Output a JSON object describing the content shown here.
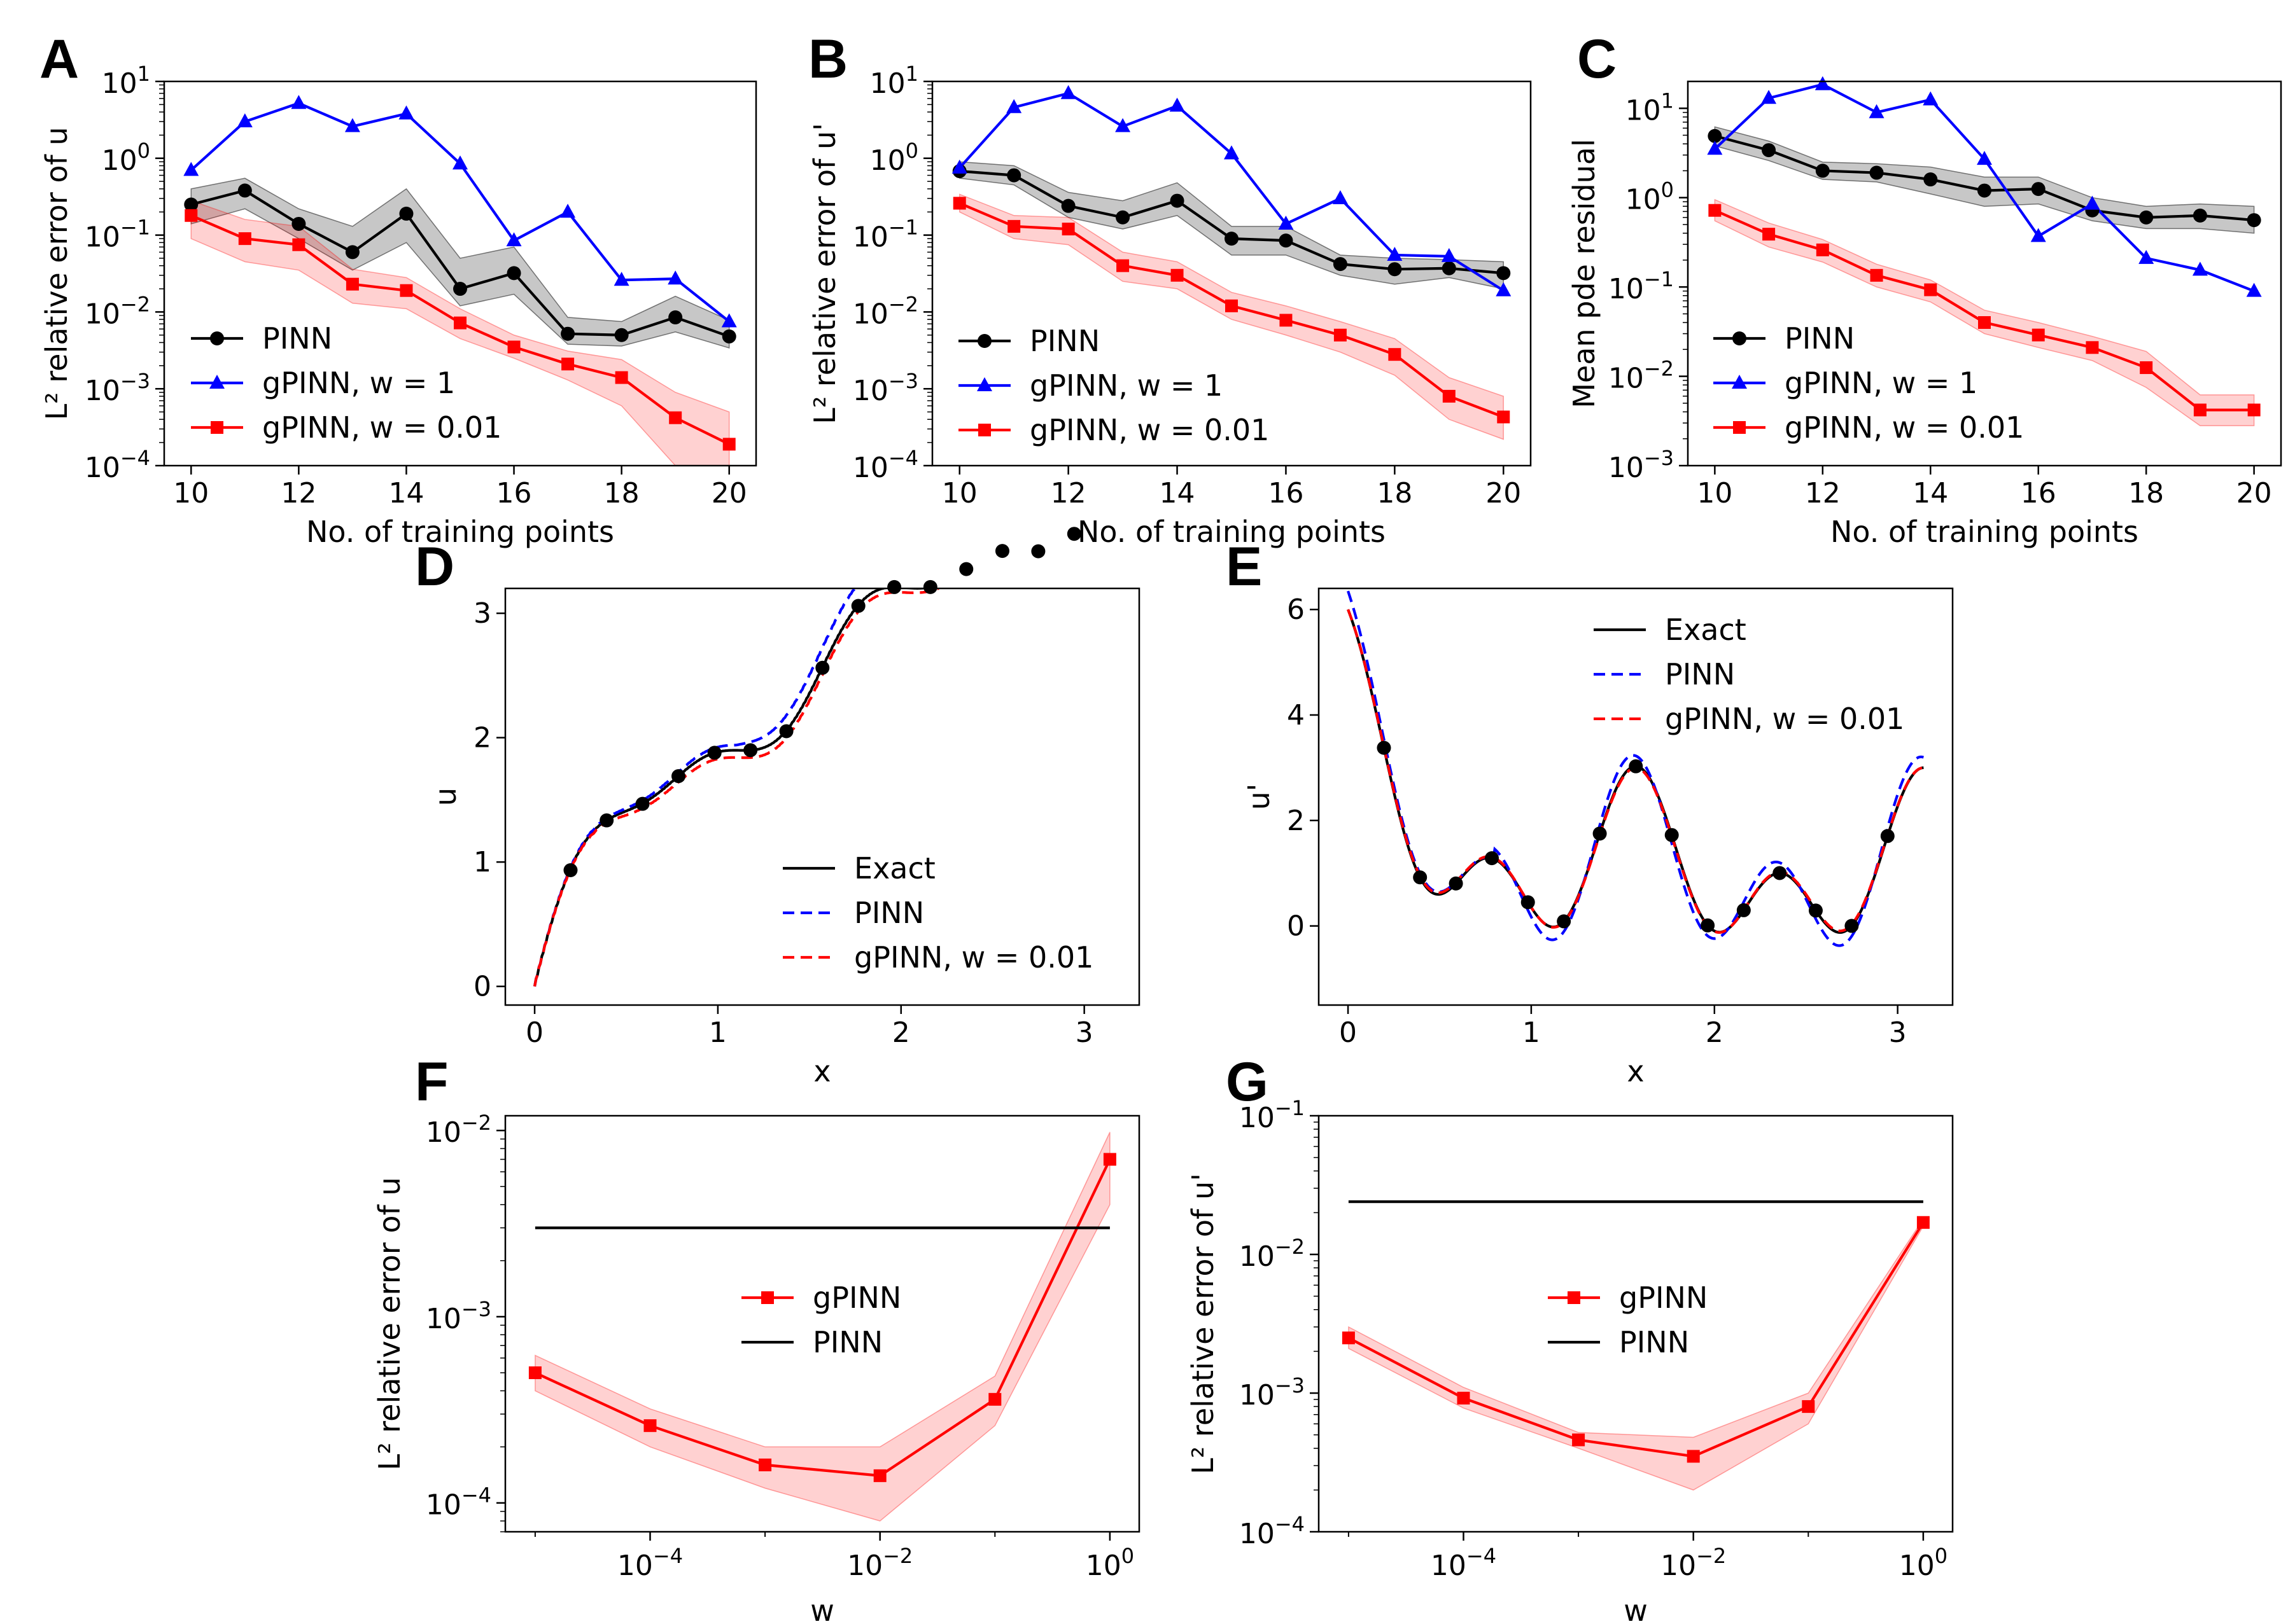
{
  "chart_data": [
    {
      "id": "A",
      "panel_letter": "A",
      "type": "line",
      "scale": "linlog",
      "xlabel": "No. of training points",
      "ylabel": "L² relative error of u",
      "xlim": [
        9.5,
        20.5
      ],
      "ylim": [
        0.0001,
        10
      ],
      "xticks": [
        10,
        12,
        14,
        16,
        18,
        20
      ],
      "yticks": [
        {
          "v": 0.0001,
          "b": "10",
          "e": "−4"
        },
        {
          "v": 0.001,
          "b": "10",
          "e": "−3"
        },
        {
          "v": 0.01,
          "b": "10",
          "e": "−2"
        },
        {
          "v": 0.1,
          "b": "10",
          "e": "−1"
        },
        {
          "v": 1,
          "b": "10",
          "e": "0"
        },
        {
          "v": 10,
          "b": "10",
          "e": "1"
        }
      ],
      "legend": "lower-left",
      "grid": false,
      "series": [
        {
          "name": "PINN",
          "color": "#000000",
          "marker": "circle",
          "x": [
            10,
            11,
            12,
            13,
            14,
            15,
            16,
            17,
            18,
            19,
            20
          ],
          "y": [
            0.25,
            0.38,
            0.14,
            0.06,
            0.19,
            0.02,
            0.032,
            0.0052,
            0.005,
            0.0085,
            0.0048
          ],
          "band_low": [
            0.14,
            0.22,
            0.09,
            0.035,
            0.08,
            0.012,
            0.017,
            0.0038,
            0.0036,
            0.0055,
            0.0034
          ],
          "band_high": [
            0.4,
            0.55,
            0.22,
            0.13,
            0.4,
            0.05,
            0.07,
            0.0085,
            0.0075,
            0.016,
            0.0078
          ]
        },
        {
          "name": "gPINN, w = 1",
          "color": "#0000ff",
          "marker": "triangle",
          "x": [
            10,
            11,
            12,
            13,
            14,
            15,
            16,
            17,
            18,
            19,
            20
          ],
          "y": [
            0.7,
            3.0,
            5.2,
            2.6,
            3.8,
            0.85,
            0.085,
            0.2,
            0.026,
            0.027,
            0.0075
          ]
        },
        {
          "name": "gPINN, w = 0.01",
          "color": "#ff0000",
          "marker": "square",
          "x": [
            10,
            11,
            12,
            13,
            14,
            15,
            16,
            17,
            18,
            19,
            20
          ],
          "y": [
            0.18,
            0.09,
            0.075,
            0.023,
            0.019,
            0.0072,
            0.0035,
            0.0021,
            0.0014,
            0.00042,
            0.00019
          ],
          "band_low": [
            0.09,
            0.045,
            0.035,
            0.013,
            0.011,
            0.0045,
            0.0025,
            0.0013,
            0.0006,
            0.0001,
            0.0001
          ],
          "band_high": [
            0.28,
            0.16,
            0.13,
            0.036,
            0.028,
            0.011,
            0.005,
            0.0031,
            0.0024,
            0.0009,
            0.0005
          ]
        }
      ]
    },
    {
      "id": "B",
      "panel_letter": "B",
      "type": "line",
      "scale": "linlog",
      "xlabel": "No. of training points",
      "ylabel": "L² relative error of u'",
      "xlim": [
        9.5,
        20.5
      ],
      "ylim": [
        0.0001,
        10
      ],
      "xticks": [
        10,
        12,
        14,
        16,
        18,
        20
      ],
      "yticks": [
        {
          "v": 0.0001,
          "b": "10",
          "e": "−4"
        },
        {
          "v": 0.001,
          "b": "10",
          "e": "−3"
        },
        {
          "v": 0.01,
          "b": "10",
          "e": "−2"
        },
        {
          "v": 0.1,
          "b": "10",
          "e": "−1"
        },
        {
          "v": 1,
          "b": "10",
          "e": "0"
        },
        {
          "v": 10,
          "b": "10",
          "e": "1"
        }
      ],
      "legend": "lower-left",
      "grid": false,
      "series": [
        {
          "name": "PINN",
          "color": "#000000",
          "marker": "circle",
          "x": [
            10,
            11,
            12,
            13,
            14,
            15,
            16,
            17,
            18,
            19,
            20
          ],
          "y": [
            0.68,
            0.6,
            0.24,
            0.17,
            0.28,
            0.09,
            0.085,
            0.042,
            0.036,
            0.037,
            0.032
          ],
          "band_low": [
            0.55,
            0.45,
            0.17,
            0.12,
            0.18,
            0.055,
            0.055,
            0.03,
            0.023,
            0.028,
            0.02
          ],
          "band_high": [
            0.9,
            0.8,
            0.36,
            0.28,
            0.48,
            0.13,
            0.13,
            0.055,
            0.05,
            0.048,
            0.045
          ]
        },
        {
          "name": "gPINN, w = 1",
          "color": "#0000ff",
          "marker": "triangle",
          "x": [
            10,
            11,
            12,
            13,
            14,
            15,
            16,
            17,
            18,
            19,
            20
          ],
          "y": [
            0.75,
            4.6,
            7.0,
            2.6,
            4.8,
            1.15,
            0.14,
            0.3,
            0.055,
            0.053,
            0.019
          ]
        },
        {
          "name": "gPINN, w = 0.01",
          "color": "#ff0000",
          "marker": "square",
          "x": [
            10,
            11,
            12,
            13,
            14,
            15,
            16,
            17,
            18,
            19,
            20
          ],
          "y": [
            0.26,
            0.13,
            0.12,
            0.04,
            0.03,
            0.012,
            0.0078,
            0.005,
            0.0028,
            0.0008,
            0.00043
          ],
          "band_low": [
            0.2,
            0.09,
            0.075,
            0.025,
            0.02,
            0.008,
            0.005,
            0.003,
            0.0015,
            0.0004,
            0.00022
          ],
          "band_high": [
            0.34,
            0.18,
            0.17,
            0.06,
            0.045,
            0.018,
            0.012,
            0.0075,
            0.0045,
            0.0014,
            0.0008
          ]
        }
      ]
    },
    {
      "id": "C",
      "panel_letter": "C",
      "type": "line",
      "scale": "linlog",
      "xlabel": "No. of training points",
      "ylabel": "Mean pde residual",
      "xlim": [
        9.5,
        20.5
      ],
      "ylim": [
        0.001,
        20
      ],
      "xticks": [
        10,
        12,
        14,
        16,
        18,
        20
      ],
      "yticks": [
        {
          "v": 0.001,
          "b": "10",
          "e": "−3"
        },
        {
          "v": 0.01,
          "b": "10",
          "e": "−2"
        },
        {
          "v": 0.1,
          "b": "10",
          "e": "−1"
        },
        {
          "v": 1,
          "b": "10",
          "e": "0"
        },
        {
          "v": 10,
          "b": "10",
          "e": "1"
        }
      ],
      "legend": "lower-left",
      "grid": false,
      "series": [
        {
          "name": "PINN",
          "color": "#000000",
          "marker": "circle",
          "x": [
            10,
            11,
            12,
            13,
            14,
            15,
            16,
            17,
            18,
            19,
            20
          ],
          "y": [
            4.9,
            3.4,
            2.0,
            1.9,
            1.6,
            1.2,
            1.25,
            0.72,
            0.6,
            0.63,
            0.56
          ],
          "band_low": [
            3.8,
            2.6,
            1.6,
            1.5,
            1.1,
            0.8,
            0.85,
            0.55,
            0.45,
            0.45,
            0.4
          ],
          "band_high": [
            6.2,
            4.3,
            2.5,
            2.4,
            2.2,
            1.7,
            1.7,
            1.0,
            0.8,
            0.85,
            0.8
          ]
        },
        {
          "name": "gPINN, w = 1",
          "color": "#0000ff",
          "marker": "triangle",
          "x": [
            10,
            11,
            12,
            13,
            14,
            15,
            16,
            17,
            18,
            19,
            20
          ],
          "y": [
            3.5,
            13.0,
            18.5,
            9.0,
            12.5,
            2.7,
            0.37,
            0.85,
            0.21,
            0.155,
            0.09
          ]
        },
        {
          "name": "gPINN, w = 0.01",
          "color": "#ff0000",
          "marker": "square",
          "x": [
            10,
            11,
            12,
            13,
            14,
            15,
            16,
            17,
            18,
            19,
            20
          ],
          "y": [
            0.72,
            0.39,
            0.26,
            0.135,
            0.093,
            0.04,
            0.029,
            0.021,
            0.0125,
            0.0042,
            0.0042
          ],
          "band_low": [
            0.55,
            0.28,
            0.19,
            0.1,
            0.068,
            0.03,
            0.021,
            0.015,
            0.0075,
            0.0028,
            0.0028
          ],
          "band_high": [
            0.95,
            0.52,
            0.34,
            0.18,
            0.12,
            0.055,
            0.04,
            0.028,
            0.019,
            0.0062,
            0.0062
          ]
        }
      ]
    },
    {
      "id": "D",
      "panel_letter": "D",
      "type": "line",
      "scale": "linlin",
      "xlabel": "x",
      "ylabel": "u",
      "xlim": [
        -0.16,
        3.3
      ],
      "ylim": [
        -0.15,
        3.2
      ],
      "xticks": [
        0,
        1,
        2,
        3
      ],
      "yticks_lin": [
        0,
        1,
        2,
        3
      ],
      "legend": "lower-right",
      "grid": false,
      "series": [
        {
          "name": "Exact",
          "color": "#000000",
          "dash": "",
          "func": "u_exact"
        },
        {
          "name": "PINN",
          "color": "#0000ff",
          "dash": "18,10",
          "func": "u_pinn"
        },
        {
          "name": "gPINN, w = 0.01",
          "color": "#ff0000",
          "dash": "18,10",
          "func": "u_gpinn"
        }
      ],
      "training_points": {
        "x": [
          0.196,
          0.393,
          0.589,
          0.785,
          0.982,
          1.178,
          1.374,
          1.571,
          1.767,
          1.963,
          2.16,
          2.356,
          2.553,
          2.749,
          2.945
        ]
      }
    },
    {
      "id": "E",
      "panel_letter": "E",
      "type": "line",
      "scale": "linlin",
      "xlabel": "x",
      "ylabel": "u'",
      "xlim": [
        -0.16,
        3.3
      ],
      "ylim": [
        -1.5,
        6.4
      ],
      "xticks": [
        0,
        1,
        2,
        3
      ],
      "yticks_lin": [
        0,
        2,
        4,
        6
      ],
      "legend": "upper-right",
      "grid": false,
      "series": [
        {
          "name": "Exact",
          "color": "#000000",
          "dash": "",
          "func": "du_exact"
        },
        {
          "name": "PINN",
          "color": "#0000ff",
          "dash": "18,10",
          "func": "du_pinn"
        },
        {
          "name": "gPINN, w = 0.01",
          "color": "#ff0000",
          "dash": "18,10",
          "func": "du_gpinn"
        }
      ],
      "training_points": {
        "x": [
          0.196,
          0.393,
          0.589,
          0.785,
          0.982,
          1.178,
          1.374,
          1.571,
          1.767,
          1.963,
          2.16,
          2.356,
          2.553,
          2.749,
          2.945
        ]
      }
    },
    {
      "id": "F",
      "panel_letter": "F",
      "type": "line",
      "scale": "loglog",
      "xlabel": "w",
      "ylabel": "L² relative error of u",
      "xlim": [
        5.5e-06,
        1.8
      ],
      "ylim": [
        7e-05,
        0.012
      ],
      "xticks": [
        {
          "v": 0.0001,
          "b": "10",
          "e": "−4"
        },
        {
          "v": 0.01,
          "b": "10",
          "e": "−2"
        },
        {
          "v": 1,
          "b": "10",
          "e": "0"
        }
      ],
      "yticks": [
        {
          "v": 0.0001,
          "b": "10",
          "e": "−4"
        },
        {
          "v": 0.001,
          "b": "10",
          "e": "−3"
        },
        {
          "v": 0.01,
          "b": "10",
          "e": "−2"
        }
      ],
      "legend": "center",
      "grid": false,
      "series": [
        {
          "name": "gPINN",
          "color": "#ff0000",
          "marker": "square",
          "x": [
            1e-05,
            0.0001,
            0.001,
            0.01,
            0.1,
            1
          ],
          "y": [
            0.0005,
            0.00026,
            0.00016,
            0.00014,
            0.00036,
            0.007
          ],
          "band_low": [
            0.0004,
            0.0002,
            0.00012,
            8e-05,
            0.00026,
            0.004
          ],
          "band_high": [
            0.00062,
            0.00032,
            0.0002,
            0.0002,
            0.00048,
            0.0098
          ]
        },
        {
          "name": "PINN",
          "color": "#000000",
          "x": [
            1e-05,
            1
          ],
          "y": [
            0.003,
            0.003
          ]
        }
      ]
    },
    {
      "id": "G",
      "panel_letter": "G",
      "type": "line",
      "scale": "loglog",
      "xlabel": "w",
      "ylabel": "L² relative error of u'",
      "xlim": [
        5.5e-06,
        1.8
      ],
      "ylim": [
        0.0001,
        0.1
      ],
      "xticks": [
        {
          "v": 0.0001,
          "b": "10",
          "e": "−4"
        },
        {
          "v": 0.01,
          "b": "10",
          "e": "−2"
        },
        {
          "v": 1,
          "b": "10",
          "e": "0"
        }
      ],
      "yticks": [
        {
          "v": 0.0001,
          "b": "10",
          "e": "−4"
        },
        {
          "v": 0.001,
          "b": "10",
          "e": "−3"
        },
        {
          "v": 0.01,
          "b": "10",
          "e": "−2"
        },
        {
          "v": 0.1,
          "b": "10",
          "e": "−1"
        }
      ],
      "legend": "center",
      "grid": false,
      "series": [
        {
          "name": "gPINN",
          "color": "#ff0000",
          "marker": "square",
          "x": [
            1e-05,
            0.0001,
            0.001,
            0.01,
            0.1,
            1
          ],
          "y": [
            0.0025,
            0.00092,
            0.00046,
            0.00035,
            0.0008,
            0.017
          ],
          "band_low": [
            0.0021,
            0.00078,
            0.0004,
            0.0002,
            0.0006,
            0.016
          ],
          "band_high": [
            0.003,
            0.0011,
            0.00052,
            0.00048,
            0.001,
            0.018
          ]
        },
        {
          "name": "PINN",
          "color": "#000000",
          "x": [
            1e-05,
            1
          ],
          "y": [
            0.024,
            0.024
          ]
        }
      ]
    }
  ]
}
